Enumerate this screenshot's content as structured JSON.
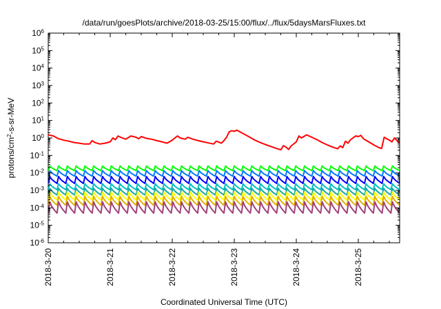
{
  "chart_data": {
    "type": "line",
    "title": "/data/run/goesPlots/archive/2018-03-25/15:00/flux/../flux/5daysMarsFluxes.txt",
    "xlabel": "Coordinated Universal Time (UTC)",
    "ylabel": {
      "prefix": "protons/cm",
      "sup": "2",
      "suffix": "-s-sr-MeV"
    },
    "x_ticks": [
      "2018-3-20",
      "2018-3-21",
      "2018-3-22",
      "2018-3-23",
      "2018-3-24",
      "2018-3-25"
    ],
    "xlim": [
      "2018-03-20T00:00",
      "2018-03-25T16:00"
    ],
    "y_scale": "log",
    "ylim": [
      1e-06,
      1000000.0
    ],
    "y_ticks": [
      {
        "base": "10",
        "exp": "-6",
        "value": 1e-06
      },
      {
        "base": "10",
        "exp": "-5",
        "value": 1e-05
      },
      {
        "base": "10",
        "exp": "-4",
        "value": 0.0001
      },
      {
        "base": "10",
        "exp": "-3",
        "value": 0.001
      },
      {
        "base": "10",
        "exp": "-2",
        "value": 0.01
      },
      {
        "base": "10",
        "exp": "-1",
        "value": 0.1
      },
      {
        "base": "10",
        "exp": "0",
        "value": 1
      },
      {
        "base": "10",
        "exp": "1",
        "value": 10
      },
      {
        "base": "10",
        "exp": "2",
        "value": 100
      },
      {
        "base": "10",
        "exp": "3",
        "value": 1000
      },
      {
        "base": "10",
        "exp": "4",
        "value": 10000
      },
      {
        "base": "10",
        "exp": "5",
        "value": 100000
      },
      {
        "base": "10",
        "exp": "6",
        "value": 1000000
      }
    ],
    "grid": false,
    "legend": "none",
    "series": [
      {
        "color": "#ff0000",
        "points": [
          [
            "2018-03-20T00:00",
            1.5
          ],
          [
            "2018-03-20T02:00",
            1.3
          ],
          [
            "2018-03-20T04:00",
            0.9
          ],
          [
            "2018-03-20T06:00",
            0.75
          ],
          [
            "2018-03-20T08:00",
            0.65
          ],
          [
            "2018-03-20T10:00",
            0.55
          ],
          [
            "2018-03-20T12:00",
            0.5
          ],
          [
            "2018-03-20T14:00",
            0.45
          ],
          [
            "2018-03-20T16:00",
            0.45
          ],
          [
            "2018-03-20T17:00",
            0.7
          ],
          [
            "2018-03-20T18:00",
            0.55
          ],
          [
            "2018-03-20T20:00",
            0.45
          ],
          [
            "2018-03-20T22:00",
            0.5
          ],
          [
            "2018-03-21T00:00",
            0.6
          ],
          [
            "2018-03-21T01:00",
            1.0
          ],
          [
            "2018-03-21T02:00",
            0.8
          ],
          [
            "2018-03-21T03:00",
            1.3
          ],
          [
            "2018-03-21T04:00",
            1.1
          ],
          [
            "2018-03-21T06:00",
            0.85
          ],
          [
            "2018-03-21T08:00",
            1.3
          ],
          [
            "2018-03-21T10:00",
            1.1
          ],
          [
            "2018-03-21T11:00",
            0.9
          ],
          [
            "2018-03-21T12:00",
            1.2
          ],
          [
            "2018-03-21T14:00",
            0.95
          ],
          [
            "2018-03-21T16:00",
            0.85
          ],
          [
            "2018-03-21T18:00",
            0.7
          ],
          [
            "2018-03-21T20:00",
            0.6
          ],
          [
            "2018-03-21T22:00",
            0.5
          ],
          [
            "2018-03-22T00:00",
            0.75
          ],
          [
            "2018-03-22T01:00",
            1.0
          ],
          [
            "2018-03-22T02:00",
            1.3
          ],
          [
            "2018-03-22T03:00",
            1.0
          ],
          [
            "2018-03-22T05:00",
            0.85
          ],
          [
            "2018-03-22T06:00",
            1.1
          ],
          [
            "2018-03-22T08:00",
            0.85
          ],
          [
            "2018-03-22T10:00",
            0.7
          ],
          [
            "2018-03-22T12:00",
            0.6
          ],
          [
            "2018-03-22T14:00",
            0.52
          ],
          [
            "2018-03-22T16:00",
            0.45
          ],
          [
            "2018-03-22T17:00",
            0.65
          ],
          [
            "2018-03-22T19:00",
            0.5
          ],
          [
            "2018-03-22T20:00",
            0.7
          ],
          [
            "2018-03-22T21:00",
            1.1
          ],
          [
            "2018-03-22T22:00",
            2.2
          ],
          [
            "2018-03-22T23:00",
            2.6
          ],
          [
            "2018-03-23T00:00",
            2.4
          ],
          [
            "2018-03-23T01:00",
            2.8
          ],
          [
            "2018-03-23T02:00",
            2.3
          ],
          [
            "2018-03-23T04:00",
            1.6
          ],
          [
            "2018-03-23T06:00",
            1.1
          ],
          [
            "2018-03-23T08:00",
            0.75
          ],
          [
            "2018-03-23T10:00",
            0.55
          ],
          [
            "2018-03-23T12:00",
            0.42
          ],
          [
            "2018-03-23T14:00",
            0.33
          ],
          [
            "2018-03-23T16:00",
            0.26
          ],
          [
            "2018-03-23T18:00",
            0.21
          ],
          [
            "2018-03-23T19:00",
            0.36
          ],
          [
            "2018-03-23T20:00",
            0.3
          ],
          [
            "2018-03-23T21:00",
            0.22
          ],
          [
            "2018-03-23T22:00",
            0.35
          ],
          [
            "2018-03-24T00:00",
            0.6
          ],
          [
            "2018-03-24T01:00",
            1.3
          ],
          [
            "2018-03-24T02:00",
            1.0
          ],
          [
            "2018-03-24T04:00",
            1.5
          ],
          [
            "2018-03-24T06:00",
            1.1
          ],
          [
            "2018-03-24T08:00",
            0.8
          ],
          [
            "2018-03-24T10:00",
            0.55
          ],
          [
            "2018-03-24T12:00",
            0.4
          ],
          [
            "2018-03-24T14:00",
            0.3
          ],
          [
            "2018-03-24T16:00",
            0.24
          ],
          [
            "2018-03-24T17:00",
            0.35
          ],
          [
            "2018-03-24T18:00",
            0.28
          ],
          [
            "2018-03-24T19:00",
            0.65
          ],
          [
            "2018-03-24T20:00",
            0.5
          ],
          [
            "2018-03-24T21:00",
            0.8
          ],
          [
            "2018-03-24T23:00",
            1.3
          ],
          [
            "2018-03-25T00:00",
            1.2
          ],
          [
            "2018-03-25T01:00",
            1.4
          ],
          [
            "2018-03-25T02:00",
            0.9
          ],
          [
            "2018-03-25T04:00",
            0.6
          ],
          [
            "2018-03-25T06:00",
            0.4
          ],
          [
            "2018-03-25T08:00",
            0.28
          ],
          [
            "2018-03-25T09:00",
            0.25
          ],
          [
            "2018-03-25T10:00",
            1.1
          ],
          [
            "2018-03-25T12:00",
            0.75
          ],
          [
            "2018-03-25T13:00",
            0.6
          ],
          [
            "2018-03-25T14:00",
            1.0
          ],
          [
            "2018-03-25T15:00",
            0.7
          ],
          [
            "2018-03-25T16:00",
            0.5
          ]
        ]
      },
      {
        "color": "#00ff00",
        "sawtooth": {
          "start": "2018-03-20T00:00",
          "end": "2018-03-25T16:00",
          "period_hours": 3.4,
          "low": 0.0135,
          "high": 0.025
        }
      },
      {
        "color": "#0077ff",
        "sawtooth": {
          "start": "2018-03-20T00:00",
          "end": "2018-03-25T16:00",
          "period_hours": 3.4,
          "low": 0.0065,
          "high": 0.0135
        }
      },
      {
        "color": "#0000ff",
        "sawtooth": {
          "start": "2018-03-20T00:00",
          "end": "2018-03-25T16:00",
          "period_hours": 3.4,
          "low": 0.0025,
          "high": 0.0062
        }
      },
      {
        "color": "#00c0c0",
        "sawtooth": {
          "start": "2018-03-20T00:00",
          "end": "2018-03-25T16:00",
          "period_hours": 3.4,
          "low": 0.0011,
          "high": 0.0024
        }
      },
      {
        "color": "#1aa8a0",
        "sawtooth": {
          "start": "2018-03-20T00:00",
          "end": "2018-03-25T16:00",
          "period_hours": 3.4,
          "low": 0.00055,
          "high": 0.0013
        }
      },
      {
        "color": "#ffff00",
        "sawtooth": {
          "start": "2018-03-20T00:00",
          "end": "2018-03-25T16:00",
          "period_hours": 3.4,
          "low": 0.00028,
          "high": 0.0008
        }
      },
      {
        "color": "#e0b000",
        "sawtooth": {
          "start": "2018-03-20T00:00",
          "end": "2018-03-25T16:00",
          "period_hours": 3.4,
          "low": 0.00014,
          "high": 0.00045
        }
      },
      {
        "color": "#a0407a",
        "sawtooth": {
          "start": "2018-03-20T00:00",
          "end": "2018-03-25T16:00",
          "period_hours": 3.4,
          "low": 5e-05,
          "high": 0.00022
        }
      }
    ]
  }
}
